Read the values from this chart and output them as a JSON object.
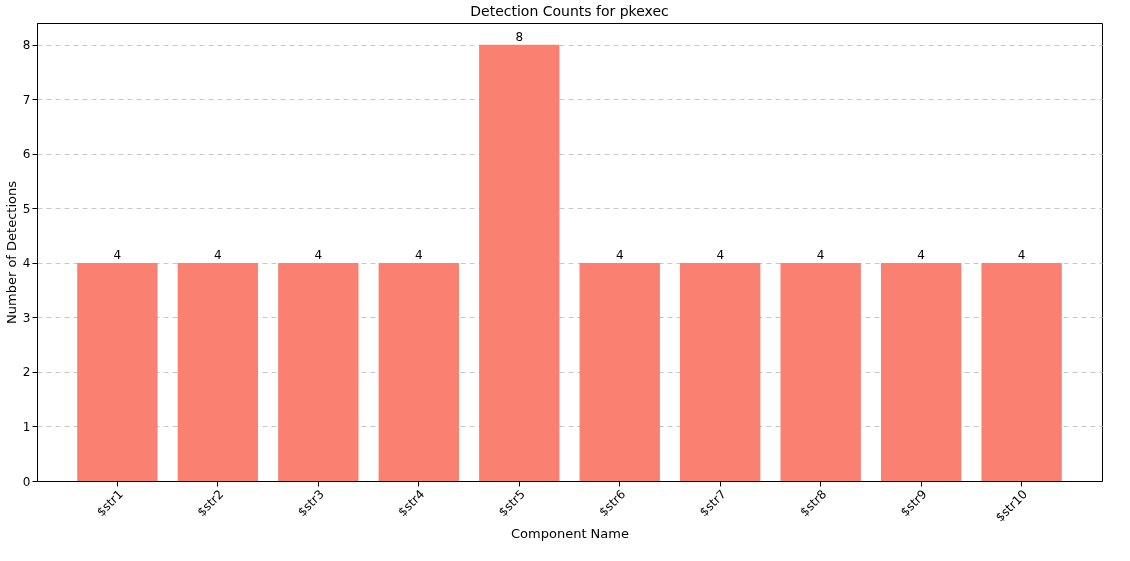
{
  "chart_data": {
    "type": "bar",
    "title": "Detection Counts for pkexec",
    "xlabel": "Component Name",
    "ylabel": "Number of Detections",
    "categories": [
      "$str1",
      "$str2",
      "$str3",
      "$str4",
      "$str5",
      "$str6",
      "$str7",
      "$str8",
      "$str9",
      "$str10"
    ],
    "values": [
      4,
      4,
      4,
      4,
      8,
      4,
      4,
      4,
      4,
      4
    ],
    "color": "#fa8072",
    "ylim": [
      0,
      8.4
    ],
    "yticks": [
      0,
      1,
      2,
      3,
      4,
      5,
      6,
      7,
      8
    ],
    "grid": "y",
    "data_labels": true
  }
}
